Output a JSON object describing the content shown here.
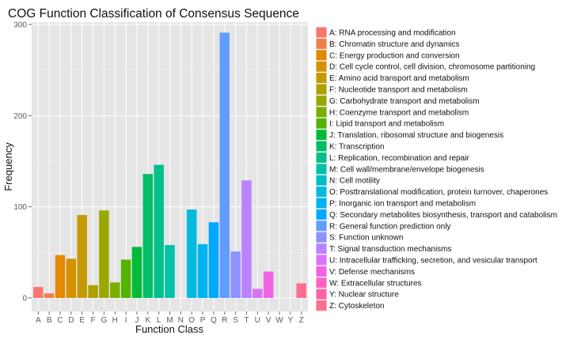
{
  "chart_data": {
    "type": "bar",
    "title": "COG Function Classification of Consensus Sequence",
    "xlabel": "Function Class",
    "ylabel": "Frequency",
    "ylim": [
      0,
      310
    ],
    "yticks": [
      0,
      100,
      200,
      300
    ],
    "grid": true,
    "legend_position": "right",
    "categories": [
      "A",
      "B",
      "C",
      "D",
      "E",
      "F",
      "G",
      "H",
      "I",
      "J",
      "K",
      "L",
      "M",
      "N",
      "O",
      "P",
      "Q",
      "R",
      "S",
      "T",
      "U",
      "V",
      "W",
      "Y",
      "Z"
    ],
    "values": [
      12,
      5,
      47,
      43,
      91,
      14,
      96,
      17,
      42,
      56,
      136,
      146,
      58,
      0,
      97,
      59,
      83,
      291,
      51,
      129,
      10,
      29,
      0,
      0,
      16
    ],
    "colors": [
      "#F8766D",
      "#EF7F49",
      "#E38900",
      "#D59100",
      "#C49A00",
      "#B09F00",
      "#99A800",
      "#7CAE00",
      "#53B400",
      "#00BA38",
      "#00BE67",
      "#00C08B",
      "#00C1A9",
      "#00BFC4",
      "#00BBDB",
      "#00B4EF",
      "#00A9FF",
      "#619CFF",
      "#8F91FF",
      "#B983FF",
      "#DB72FB",
      "#F063E3",
      "#FF61C3",
      "#FF62A6",
      "#FF6C91"
    ],
    "legend": [
      "A: RNA processing and modification",
      "B: Chromatin structure and dynamics",
      "C: Energy production and conversion",
      "D: Cell cycle control, cell division, chromosome partitioning",
      "E: Amino acid transport and metabolism",
      "F: Nucleotide transport and metabolism",
      "G: Carbohydrate transport and metabolism",
      "H: Coenzyme transport and metabolism",
      "I: Lipid transport and metabolism",
      "J: Translation, ribosomal structure and biogenesis",
      "K: Transcription",
      "L: Replication, recombination and repair",
      "M: Cell wall/membrane/envelope biogenesis",
      "N: Cell motility",
      "O: Posttranslational modification, protein turnover, chaperones",
      "P: Inorganic ion transport and metabolism",
      "Q: Secondary metabolites biosynthesis, transport and catabolism",
      "R: General function prediction only",
      "S: Function unknown",
      "T: Signal transduction mechanisms",
      "U: Intracellular trafficking, secretion, and vesicular transport",
      "V: Defense mechanisms",
      "W: Extracellular structures",
      "Y: Nuclear structure",
      "Z: Cytoskeleton"
    ]
  }
}
